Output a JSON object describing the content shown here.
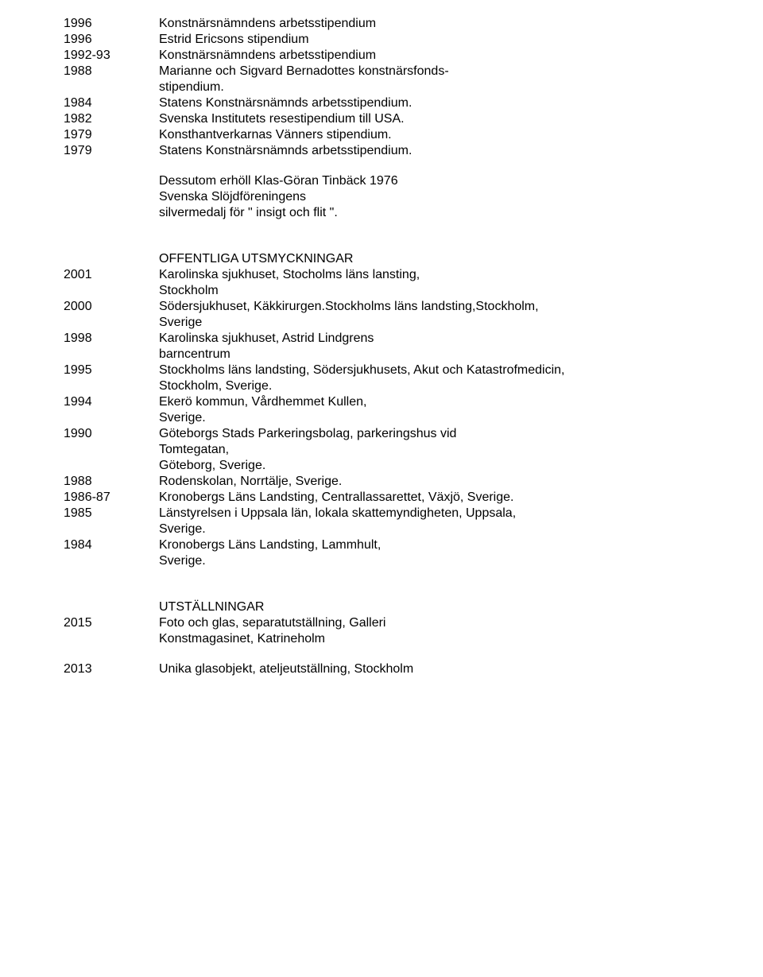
{
  "stipendium": [
    {
      "year": "1996",
      "text": "Konstnärsnämndens arbetsstipendium"
    },
    {
      "year": "1996",
      "text": "Estrid Ericsons stipendium"
    },
    {
      "year": "1992-93",
      "text": "Konstnärsnämndens arbetsstipendium"
    },
    {
      "year": "1988",
      "text": "Marianne och Sigvard Bernadottes konstnärsfonds-"
    },
    {
      "year": "",
      "text": "stipendium."
    },
    {
      "year": "1984",
      "text": "Statens Konstnärsnämnds arbetsstipendium."
    },
    {
      "year": "1982",
      "text": "Svenska Institutets resestipendium till USA."
    },
    {
      "year": "1979",
      "text": "Konsthantverkarnas Vänners stipendium."
    },
    {
      "year": "1979",
      "text": "Statens Konstnärsnämnds arbetsstipendium."
    }
  ],
  "note": [
    "Dessutom erhöll Klas-Göran Tinbäck 1976",
    "Svenska Slöjdföreningens",
    "silvermedalj för \" insigt och flit \"."
  ],
  "offentliga": {
    "heading": "OFFENTLIGA UTSMYCKNINGAR",
    "rows": [
      {
        "year": "2001",
        "text": "Karolinska sjukhuset, Stocholms läns lansting,"
      },
      {
        "year": "",
        "text": "Stockholm"
      },
      {
        "year": "2000",
        "text": "Södersjukhuset, Käkkirurgen.Stockholms läns landsting,Stockholm,"
      },
      {
        "year": "",
        "text": "Sverige"
      },
      {
        "year": "1998",
        "text": "Karolinska sjukhuset, Astrid Lindgrens"
      },
      {
        "year": "",
        "text": "barncentrum"
      },
      {
        "year": "1995",
        "text": "Stockholms läns landsting, Södersjukhusets, Akut och Katastrofmedicin,"
      },
      {
        "year": "",
        "text": "Stockholm, Sverige."
      },
      {
        "year": "1994",
        "text": "Ekerö kommun, Vårdhemmet Kullen,"
      },
      {
        "year": "",
        "text": "Sverige."
      },
      {
        "year": "1990",
        "text": "Göteborgs Stads Parkeringsbolag, parkeringshus vid"
      },
      {
        "year": "",
        "text": "Tomtegatan,"
      },
      {
        "year": "",
        "text": "Göteborg, Sverige."
      },
      {
        "year": "1988",
        "text": "Rodenskolan, Norrtälje, Sverige."
      },
      {
        "year": "1986-87",
        "text": "Kronobergs Läns Landsting, Centrallassarettet, Växjö, Sverige."
      },
      {
        "year": "1985",
        "text": "Länstyrelsen i Uppsala län, lokala skattemyndigheten, Uppsala,"
      },
      {
        "year": "",
        "text": "Sverige."
      },
      {
        "year": "1984",
        "text": "Kronobergs Läns Landsting, Lammhult,"
      },
      {
        "year": "",
        "text": "Sverige."
      }
    ]
  },
  "utstallningar": {
    "heading": "UTSTÄLLNINGAR",
    "rows": [
      {
        "year": "2015",
        "text": "Foto och glas, separatutställning, Galleri"
      },
      {
        "year": "",
        "text": "Konstmagasinet, Katrineholm"
      }
    ],
    "last": {
      "year": "2013",
      "text": "Unika glasobjekt, ateljeutställning, Stockholm"
    }
  }
}
